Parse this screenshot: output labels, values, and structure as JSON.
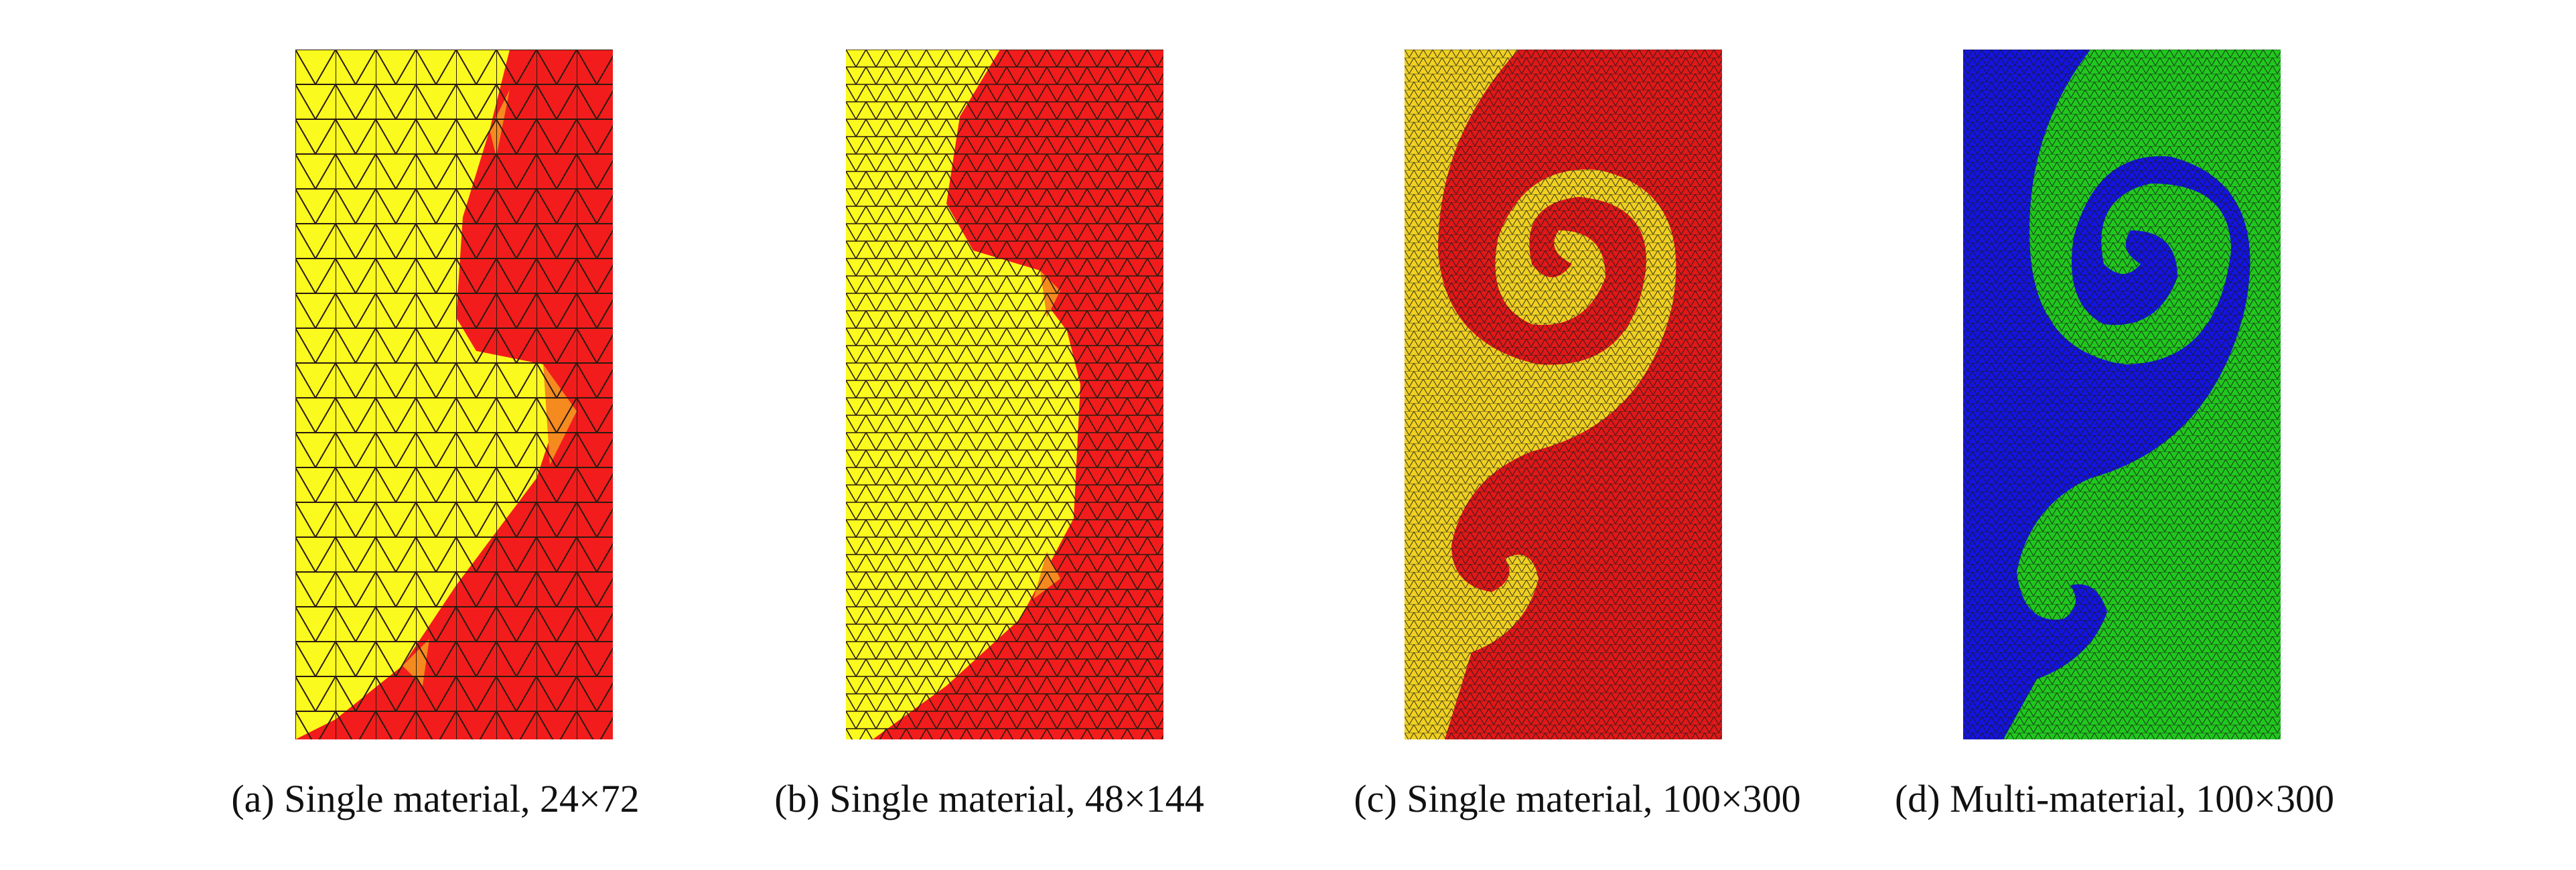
{
  "panels": [
    {
      "caption": "(a) Single material, 24×72"
    },
    {
      "caption": "(b) Single material, 48×144"
    },
    {
      "caption": "(c) Single material, 100×300"
    },
    {
      "caption": "(d) Multi-material, 100×300"
    }
  ]
}
